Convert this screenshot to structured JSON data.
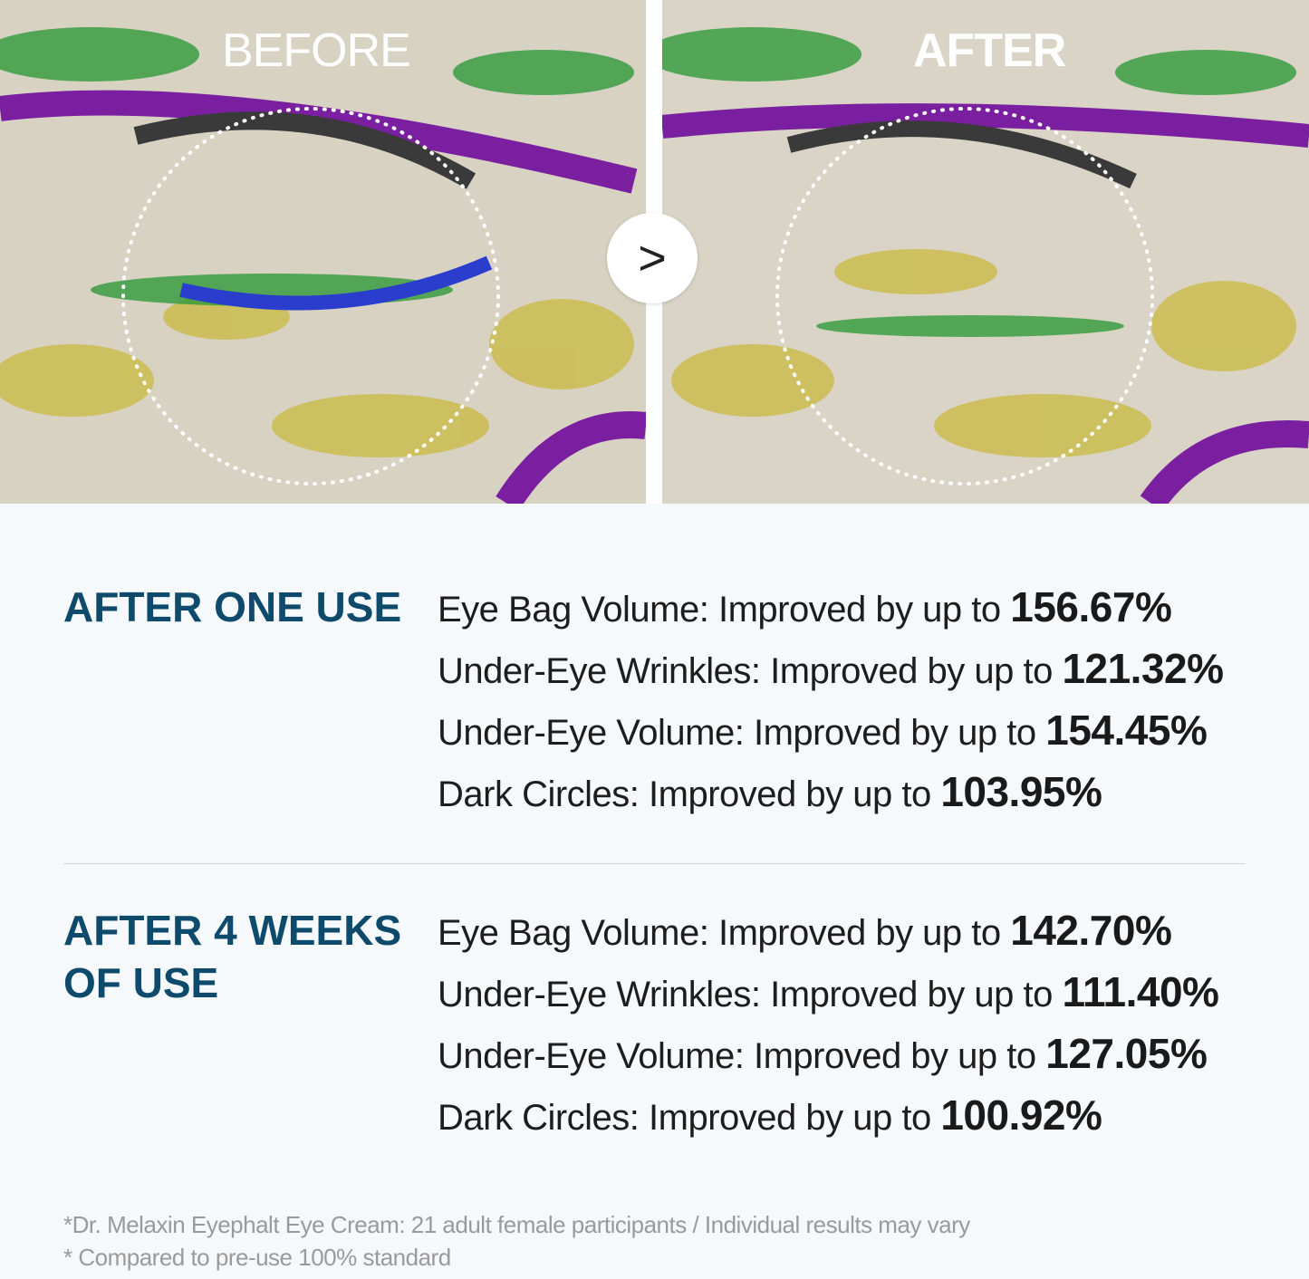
{
  "photos": {
    "before_label": "BEFORE",
    "after_label": "AFTER",
    "arrow_icon": "chevron-right-icon",
    "arrow_glyph": ">"
  },
  "sections": [
    {
      "title": "AFTER ONE USE",
      "rows": [
        {
          "label": "Eye Bag Volume: Improved by up to ",
          "value": "156.67%"
        },
        {
          "label": "Under-Eye Wrinkles: Improved by up to ",
          "value": "121.32%"
        },
        {
          "label": "Under-Eye Volume: Improved by up to ",
          "value": "154.45%"
        },
        {
          "label": "Dark Circles: Improved by up to ",
          "value": "103.95%"
        }
      ]
    },
    {
      "title": "AFTER 4 WEEKS OF USE",
      "rows": [
        {
          "label": "Eye Bag Volume: Improved by up to ",
          "value": "142.70%"
        },
        {
          "label": "Under-Eye Wrinkles: Improved by up to ",
          "value": "111.40%"
        },
        {
          "label": "Under-Eye Volume: Improved by up to ",
          "value": "127.05%"
        },
        {
          "label": "Dark Circles: Improved by up to ",
          "value": "100.92%"
        }
      ]
    }
  ],
  "footnotes": [
    "*Dr. Melaxin Eyephalt Eye Cream: 21 adult female participants / Individual results may vary",
    "* Compared to pre-use 100% standard"
  ],
  "colors": {
    "heading": "#0e4a6b",
    "background": "#f5f9fc"
  }
}
